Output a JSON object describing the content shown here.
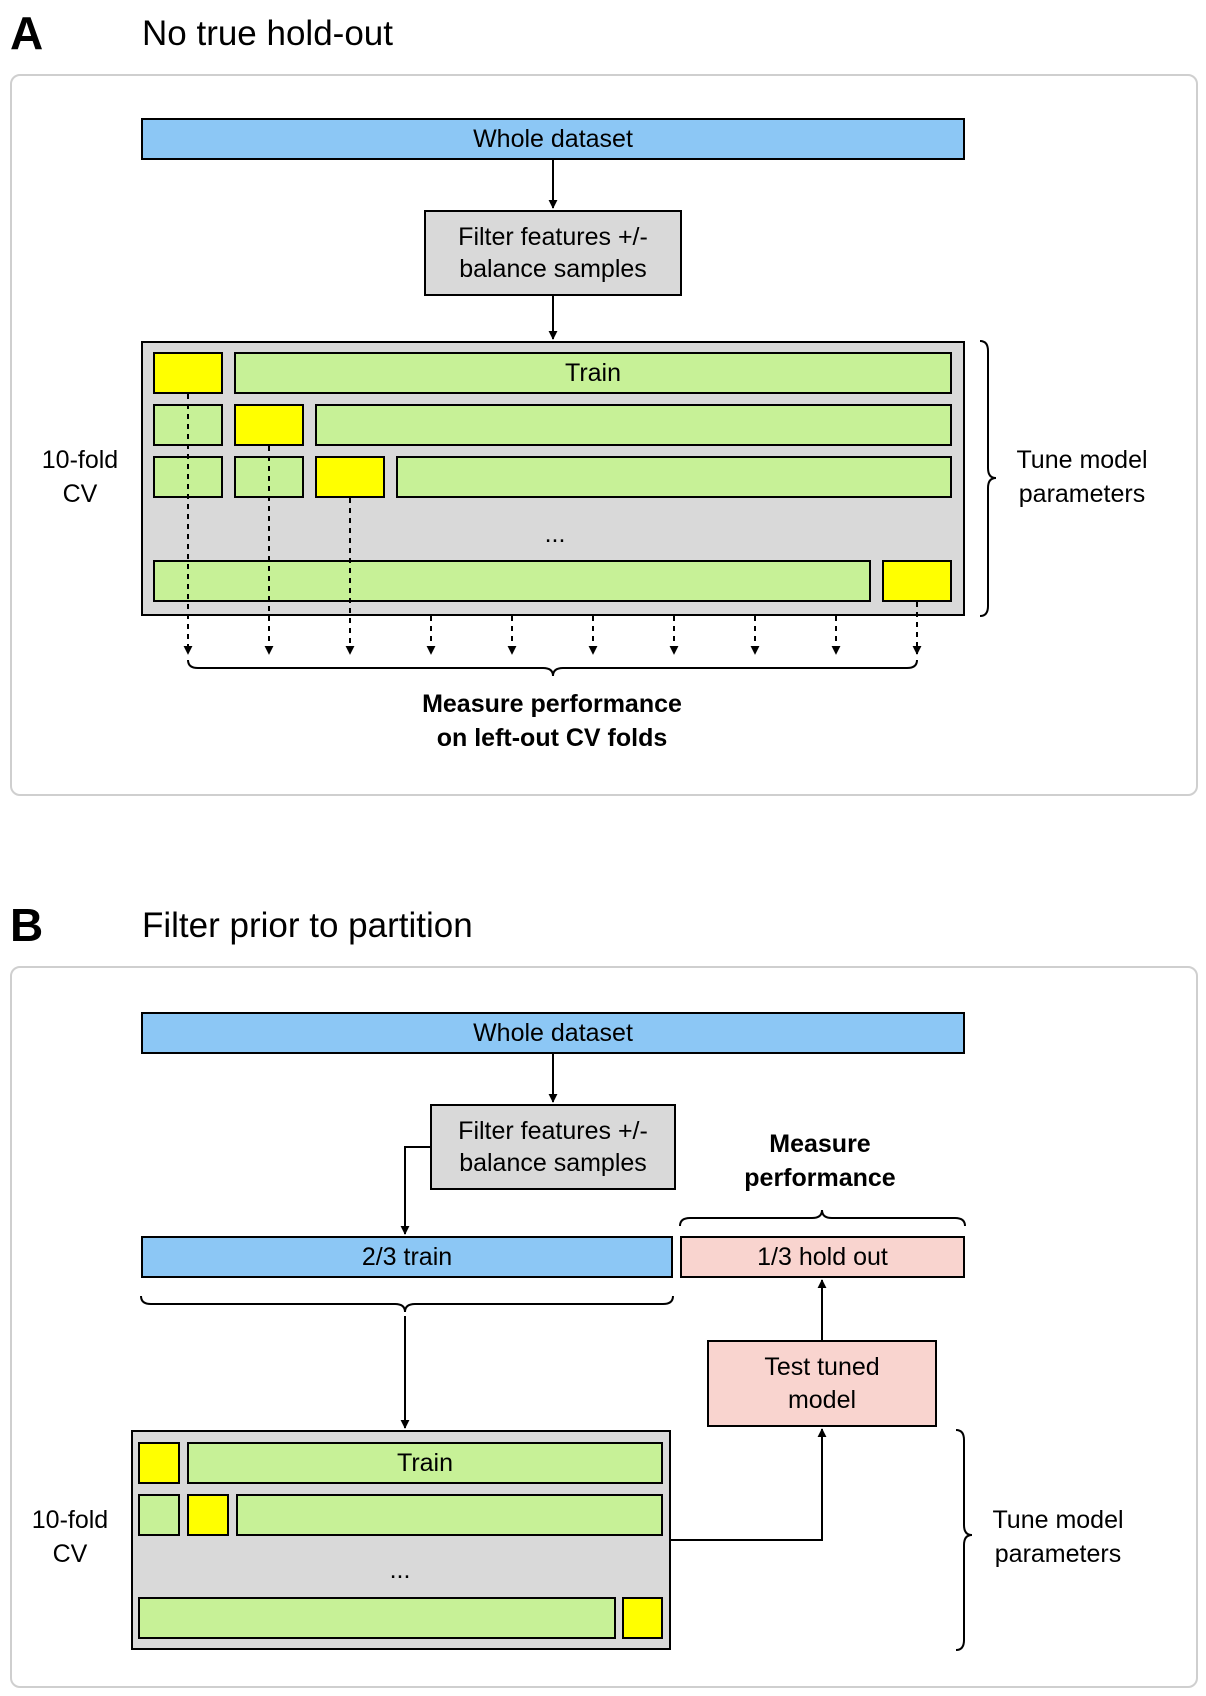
{
  "panel_a": {
    "letter": "A",
    "title": "No true hold-out",
    "whole_dataset": "Whole dataset",
    "filter_box": [
      "Filter features +/-",
      "balance samples"
    ],
    "train_label": "Train",
    "ellipsis": "...",
    "cv_label": [
      "10-fold",
      "CV"
    ],
    "tune_label": [
      "Tune model",
      "parameters"
    ],
    "measure_label": [
      "Measure performance",
      "on left-out CV folds"
    ]
  },
  "panel_b": {
    "letter": "B",
    "title": "Filter prior to partition",
    "whole_dataset": "Whole dataset",
    "filter_box": [
      "Filter features +/-",
      "balance samples"
    ],
    "measure_label": [
      "Measure",
      "performance"
    ],
    "train_split": "2/3 train",
    "holdout_split": "1/3 hold out",
    "test_box": [
      "Test tuned",
      "model"
    ],
    "train_label": "Train",
    "ellipsis": "...",
    "cv_label": [
      "10-fold",
      "CV"
    ],
    "tune_label": [
      "Tune model",
      "parameters"
    ]
  },
  "colors": {
    "blue": "#8cc7f5",
    "gray": "#d9d9d9",
    "green": "#c7f197",
    "yellow": "#ffff00",
    "pink": "#f9d4cf"
  }
}
